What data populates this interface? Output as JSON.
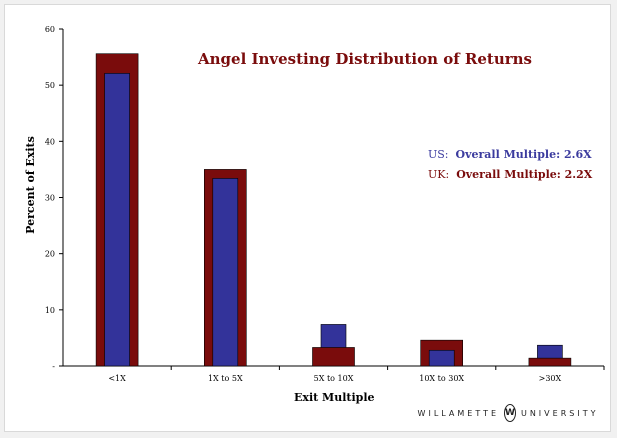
{
  "chart_data": {
    "type": "bar",
    "title": "Angel Investing Distribution of Returns",
    "xlabel": "Exit Multiple",
    "ylabel": "Percent of Exits",
    "categories": [
      "<1X",
      "1X to 5X",
      "5X to 10X",
      "10X to 30X",
      ">30X"
    ],
    "series": [
      {
        "name": "UK",
        "color": "#7a0c0c",
        "values": [
          55.6,
          35.0,
          3.3,
          4.6,
          1.4
        ]
      },
      {
        "name": "US",
        "color": "#33339a",
        "values": [
          52.1,
          33.4,
          7.4,
          2.8,
          3.7
        ]
      }
    ],
    "ylim": [
      0,
      60
    ],
    "yticks": [
      0,
      10,
      20,
      30,
      40,
      50,
      60
    ],
    "ytick_labels": [
      "-",
      "10",
      "20",
      "30",
      "40",
      "50",
      "60"
    ],
    "grid": false,
    "annotations": [
      {
        "prefix": "US:",
        "text": "Overall Multiple: 2.6X",
        "color": "#3b3b9e"
      },
      {
        "prefix": "UK:",
        "text": "Overall Multiple: 2.2X",
        "color": "#7a0c0c"
      }
    ]
  },
  "logo": {
    "left": "WILLAMETTE",
    "mark": "W",
    "right": "UNIVERSITY"
  }
}
